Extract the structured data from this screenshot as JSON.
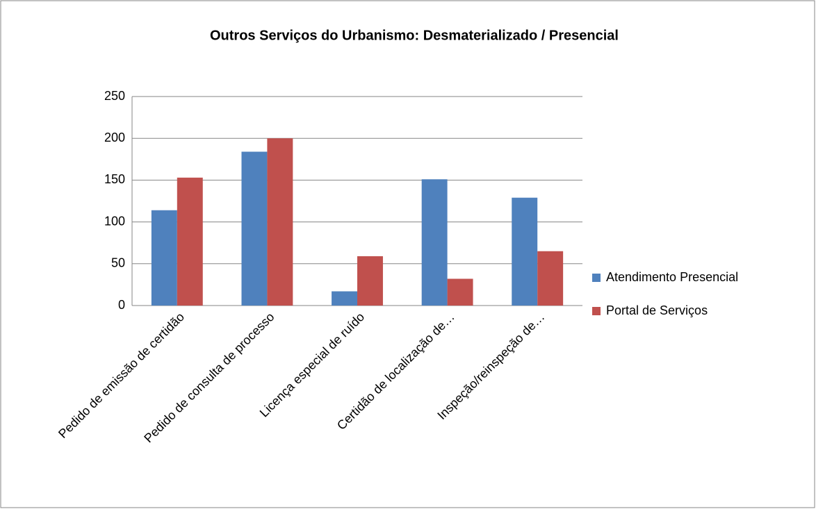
{
  "chart_data": {
    "type": "bar",
    "title": "Outros Serviços do Urbanismo: Desmaterializado / Presencial",
    "categories": [
      "Pedido de emissão de certidão",
      "Pedido de consulta de processo",
      "Licença especial de ruído",
      "Certidão de localização de…",
      "Inspeção/reinspeção de…"
    ],
    "series": [
      {
        "name": "Atendimento Presencial",
        "color": "#4f81bd",
        "values": [
          114,
          184,
          17,
          151,
          129
        ]
      },
      {
        "name": "Portal de Serviços",
        "color": "#c0504d",
        "values": [
          153,
          200,
          59,
          32,
          65
        ]
      }
    ],
    "ylim": [
      0,
      250
    ],
    "yticks": [
      0,
      50,
      100,
      150,
      200,
      250
    ],
    "grid": true,
    "legend": "right"
  }
}
